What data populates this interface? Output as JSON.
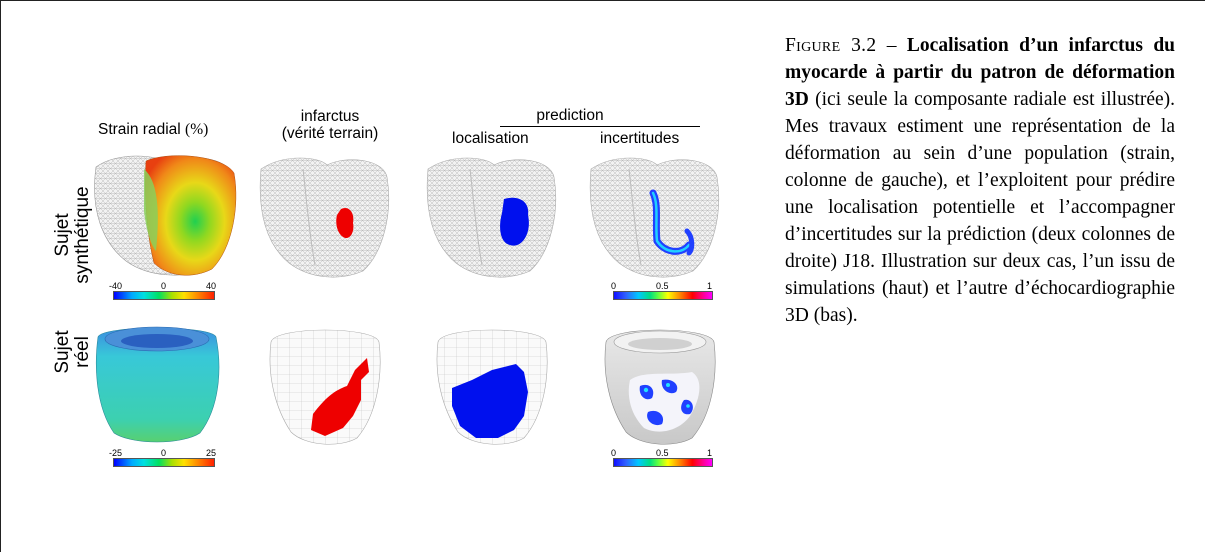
{
  "figure": {
    "headers": {
      "strain": "Strain radial",
      "strain_unit": "(%)",
      "infarctus_line1": "infarctus",
      "infarctus_line2": "(vérité terrain)",
      "prediction": "prediction",
      "localisation": "localisation",
      "incertitudes": "incertitudes"
    },
    "row_labels": {
      "synthetic_line1": "Sujet",
      "synthetic_line2": "synthétique",
      "real_line1": "Sujet",
      "real_line2": "réel"
    },
    "colorbars": {
      "strain_synthetic": [
        "-40",
        "0",
        "40"
      ],
      "uncertainty_synthetic": [
        "0",
        "0.5",
        "1"
      ],
      "strain_real": [
        "-25",
        "0",
        "25"
      ],
      "uncertainty_real": [
        "0",
        "0.5",
        "1"
      ]
    },
    "colors": {
      "infarct": "#ee0000",
      "prediction": "#0010ee",
      "mesh": "#d8d8d8",
      "real_strain": "#38c8c0"
    }
  },
  "caption": {
    "label": "Figure 3.2",
    "dash": " – ",
    "bold": "Localisation d’un infarctus du myocarde à partir du patron de déformation 3D",
    "rest": " (ici seule la composante radiale est illustrée). Mes travaux estiment une représentation de la déformation au sein d’une population (strain, colonne de gauche), et l’exploitent pour prédire une localisation potentielle et l’accompagner d’incertitudes sur la prédiction (deux colonnes de droite) J18. Illustration sur deux cas, l’un issu de simulations (haut) et l’autre d’échocardiographie 3D (bas)."
  }
}
